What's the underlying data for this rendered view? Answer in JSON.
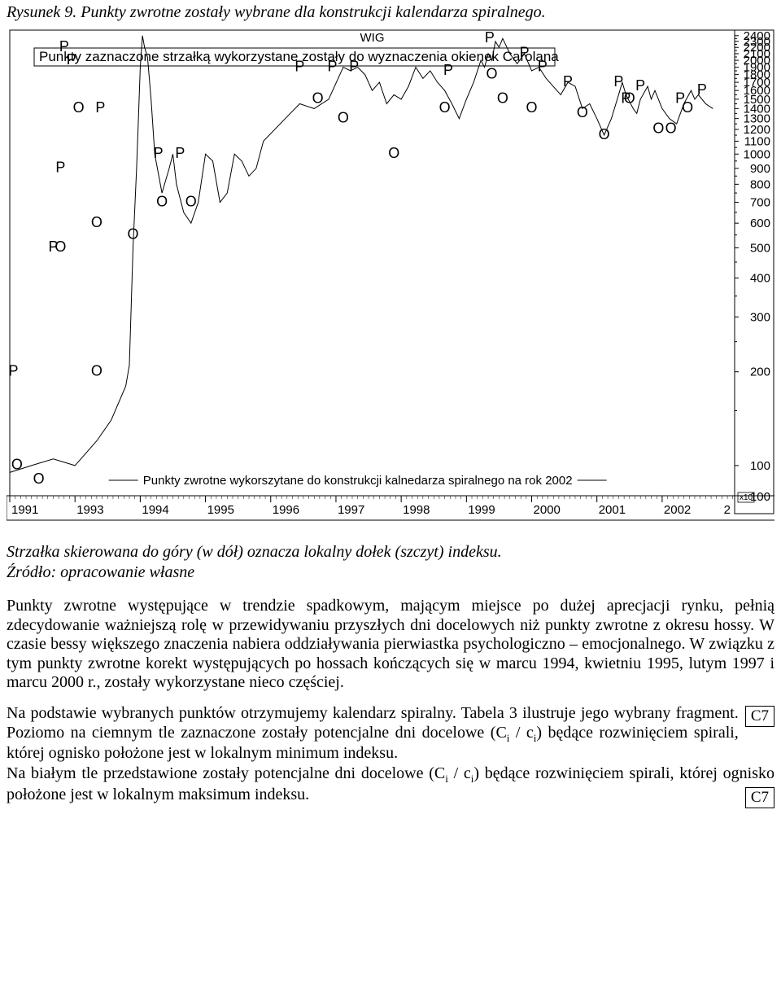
{
  "figure": {
    "title": "Rysunek 9. Punkty zwrotne zostały wybrane dla konstrukcji kalendarza spiralnego.",
    "chart_name": "WIG",
    "top_legend": "Punkty zaznaczone strzałką wykorzystane zostały do wyznaczenia okienek Carolana",
    "mid_legend": "Punkty zwrotne wykorszytane do konstrukcji kalnedarza spiralnego na rok 2002",
    "scale_note": "x10",
    "scale_value": "100",
    "type": "line",
    "colors": {
      "line": "#000000",
      "frame": "#000000",
      "bg": "#ffffff",
      "tick": "#000000"
    },
    "x_ticks": [
      "1991",
      "1993",
      "1994",
      "1995",
      "1996",
      "1997",
      "1998",
      "1999",
      "2000",
      "2001",
      "2002"
    ],
    "y_ticks": [
      100,
      200,
      300,
      400,
      500,
      600,
      700,
      800,
      900,
      1000,
      1100,
      1200,
      1300,
      1400,
      1500,
      1600,
      1700,
      1800,
      1900,
      2000,
      2100,
      2200,
      2300,
      2400
    ],
    "ylim_top_display": 2400,
    "ylim_bottom_display": 100,
    "series": [
      {
        "x": 0.0,
        "y": 95
      },
      {
        "x": 0.03,
        "y": 100
      },
      {
        "x": 0.06,
        "y": 105
      },
      {
        "x": 0.09,
        "y": 100
      },
      {
        "x": 0.12,
        "y": 120
      },
      {
        "x": 0.14,
        "y": 140
      },
      {
        "x": 0.16,
        "y": 180
      },
      {
        "x": 0.165,
        "y": 210
      },
      {
        "x": 0.17,
        "y": 500
      },
      {
        "x": 0.175,
        "y": 900
      },
      {
        "x": 0.178,
        "y": 1400
      },
      {
        "x": 0.18,
        "y": 1900
      },
      {
        "x": 0.183,
        "y": 2400
      },
      {
        "x": 0.186,
        "y": 2200
      },
      {
        "x": 0.19,
        "y": 2050
      },
      {
        "x": 0.195,
        "y": 1500
      },
      {
        "x": 0.2,
        "y": 1000
      },
      {
        "x": 0.21,
        "y": 750
      },
      {
        "x": 0.22,
        "y": 900
      },
      {
        "x": 0.225,
        "y": 1000
      },
      {
        "x": 0.23,
        "y": 800
      },
      {
        "x": 0.24,
        "y": 650
      },
      {
        "x": 0.25,
        "y": 600
      },
      {
        "x": 0.26,
        "y": 700
      },
      {
        "x": 0.27,
        "y": 1000
      },
      {
        "x": 0.28,
        "y": 950
      },
      {
        "x": 0.29,
        "y": 700
      },
      {
        "x": 0.3,
        "y": 750
      },
      {
        "x": 0.31,
        "y": 1000
      },
      {
        "x": 0.32,
        "y": 950
      },
      {
        "x": 0.33,
        "y": 850
      },
      {
        "x": 0.34,
        "y": 900
      },
      {
        "x": 0.35,
        "y": 1100
      },
      {
        "x": 0.38,
        "y": 1300
      },
      {
        "x": 0.4,
        "y": 1450
      },
      {
        "x": 0.42,
        "y": 1400
      },
      {
        "x": 0.44,
        "y": 1500
      },
      {
        "x": 0.46,
        "y": 1900
      },
      {
        "x": 0.47,
        "y": 1850
      },
      {
        "x": 0.48,
        "y": 1900
      },
      {
        "x": 0.49,
        "y": 1800
      },
      {
        "x": 0.5,
        "y": 1600
      },
      {
        "x": 0.51,
        "y": 1700
      },
      {
        "x": 0.52,
        "y": 1450
      },
      {
        "x": 0.53,
        "y": 1550
      },
      {
        "x": 0.54,
        "y": 1500
      },
      {
        "x": 0.55,
        "y": 1650
      },
      {
        "x": 0.56,
        "y": 1900
      },
      {
        "x": 0.57,
        "y": 1750
      },
      {
        "x": 0.58,
        "y": 1850
      },
      {
        "x": 0.59,
        "y": 1700
      },
      {
        "x": 0.6,
        "y": 1600
      },
      {
        "x": 0.61,
        "y": 1450
      },
      {
        "x": 0.62,
        "y": 1300
      },
      {
        "x": 0.63,
        "y": 1500
      },
      {
        "x": 0.64,
        "y": 1700
      },
      {
        "x": 0.65,
        "y": 2000
      },
      {
        "x": 0.655,
        "y": 1900
      },
      {
        "x": 0.66,
        "y": 2100
      },
      {
        "x": 0.665,
        "y": 2000
      },
      {
        "x": 0.67,
        "y": 2300
      },
      {
        "x": 0.675,
        "y": 2200
      },
      {
        "x": 0.68,
        "y": 2350
      },
      {
        "x": 0.69,
        "y": 2100
      },
      {
        "x": 0.7,
        "y": 1950
      },
      {
        "x": 0.71,
        "y": 2100
      },
      {
        "x": 0.72,
        "y": 1850
      },
      {
        "x": 0.73,
        "y": 1900
      },
      {
        "x": 0.74,
        "y": 1750
      },
      {
        "x": 0.76,
        "y": 1550
      },
      {
        "x": 0.77,
        "y": 1700
      },
      {
        "x": 0.78,
        "y": 1650
      },
      {
        "x": 0.79,
        "y": 1400
      },
      {
        "x": 0.8,
        "y": 1450
      },
      {
        "x": 0.81,
        "y": 1300
      },
      {
        "x": 0.82,
        "y": 1150
      },
      {
        "x": 0.83,
        "y": 1300
      },
      {
        "x": 0.84,
        "y": 1550
      },
      {
        "x": 0.845,
        "y": 1700
      },
      {
        "x": 0.85,
        "y": 1550
      },
      {
        "x": 0.86,
        "y": 1400
      },
      {
        "x": 0.865,
        "y": 1350
      },
      {
        "x": 0.87,
        "y": 1500
      },
      {
        "x": 0.88,
        "y": 1650
      },
      {
        "x": 0.885,
        "y": 1500
      },
      {
        "x": 0.89,
        "y": 1600
      },
      {
        "x": 0.9,
        "y": 1400
      },
      {
        "x": 0.91,
        "y": 1300
      },
      {
        "x": 0.92,
        "y": 1250
      },
      {
        "x": 0.93,
        "y": 1450
      },
      {
        "x": 0.94,
        "y": 1600
      },
      {
        "x": 0.945,
        "y": 1500
      },
      {
        "x": 0.95,
        "y": 1550
      },
      {
        "x": 0.96,
        "y": 1450
      },
      {
        "x": 0.97,
        "y": 1400
      }
    ],
    "markers": [
      {
        "label": "P",
        "x": 0.005,
        "y": 200
      },
      {
        "label": "O",
        "x": 0.01,
        "y": 100
      },
      {
        "label": "O",
        "x": 0.04,
        "y": 90
      },
      {
        "label": "O",
        "x": 0.095,
        "y": 1400
      },
      {
        "label": "P",
        "x": 0.075,
        "y": 2200
      },
      {
        "label": "P",
        "x": 0.085,
        "y": 2000
      },
      {
        "label": "O",
        "x": 0.12,
        "y": 200
      },
      {
        "label": "P",
        "x": 0.125,
        "y": 1400
      },
      {
        "label": "P",
        "x": 0.06,
        "y": 500
      },
      {
        "label": "O",
        "x": 0.07,
        "y": 500
      },
      {
        "label": "P",
        "x": 0.07,
        "y": 900
      },
      {
        "label": "O",
        "x": 0.12,
        "y": 600
      },
      {
        "label": "O",
        "x": 0.17,
        "y": 550
      },
      {
        "label": "P",
        "x": 0.205,
        "y": 1000
      },
      {
        "label": "O",
        "x": 0.21,
        "y": 700
      },
      {
        "label": "P",
        "x": 0.235,
        "y": 1000
      },
      {
        "label": "O",
        "x": 0.25,
        "y": 700
      },
      {
        "label": "P",
        "x": 0.4,
        "y": 1900
      },
      {
        "label": "P",
        "x": 0.445,
        "y": 1900
      },
      {
        "label": "O",
        "x": 0.425,
        "y": 1500
      },
      {
        "label": "O",
        "x": 0.46,
        "y": 1300
      },
      {
        "label": "P",
        "x": 0.475,
        "y": 1900
      },
      {
        "label": "O",
        "x": 0.53,
        "y": 1000
      },
      {
        "label": "P",
        "x": 0.605,
        "y": 1850
      },
      {
        "label": "O",
        "x": 0.6,
        "y": 1400
      },
      {
        "label": "P",
        "x": 0.662,
        "y": 2350
      },
      {
        "label": "O",
        "x": 0.665,
        "y": 1800
      },
      {
        "label": "O",
        "x": 0.68,
        "y": 1500
      },
      {
        "label": "P",
        "x": 0.71,
        "y": 2100
      },
      {
        "label": "O",
        "x": 0.72,
        "y": 1400
      },
      {
        "label": "P",
        "x": 0.735,
        "y": 1900
      },
      {
        "label": "P",
        "x": 0.77,
        "y": 1700
      },
      {
        "label": "O",
        "x": 0.79,
        "y": 1350
      },
      {
        "label": "O",
        "x": 0.82,
        "y": 1150
      },
      {
        "label": "P",
        "x": 0.84,
        "y": 1700
      },
      {
        "label": "P",
        "x": 0.85,
        "y": 1500
      },
      {
        "label": "O",
        "x": 0.855,
        "y": 1500
      },
      {
        "label": "P",
        "x": 0.87,
        "y": 1650
      },
      {
        "label": "O",
        "x": 0.895,
        "y": 1200
      },
      {
        "label": "O",
        "x": 0.912,
        "y": 1200
      },
      {
        "label": "P",
        "x": 0.925,
        "y": 1500
      },
      {
        "label": "O",
        "x": 0.935,
        "y": 1400
      },
      {
        "label": "P",
        "x": 0.955,
        "y": 1600
      }
    ]
  },
  "caption_below": "Strzałka skierowana do góry (w dół) oznacza lokalny dołek (szczyt) indeksu.",
  "source_line": "Źródło: opracowanie własne",
  "para1": "Punkty zwrotne występujące w trendzie spadkowym, mającym miejsce po dużej aprecjacji rynku, pełnią zdecydowanie ważniejszą rolę w przewidywaniu przyszłych dni docelowych niż punkty zwrotne z okresu hossy. W czasie bessy większego znaczenia nabiera oddziaływania pierwiastka psychologiczno – emocjonalnego. W związku z tym punkty zwrotne korekt występujących po hossach kończących się w marcu 1994, kwietniu 1995, lutym 1997 i marcu 2000 r., zostały wykorzystane nieco częściej.",
  "para2a": "Na podstawie wybranych punktów otrzymujemy kalendarz spiralny. Tabela 3 ilustruje jego wybrany fragment.  Poziomo na ciemnym tle zaznaczone zostały potencjalne dni docelowe (C",
  "para2b": " / c",
  "para2c": ") będące rozwinięciem spirali, której ognisko położone jest w lokalnym minimum indeksu.",
  "para3a": "Na białym tle przedstawione zostały potencjalne dni docelowe (C",
  "para3b": " / c",
  "para3c": ") będące rozwinięciem spirali, której ognisko położone jest w lokalnym maksimum indeksu.",
  "sub_i": "i",
  "badge": "C7"
}
